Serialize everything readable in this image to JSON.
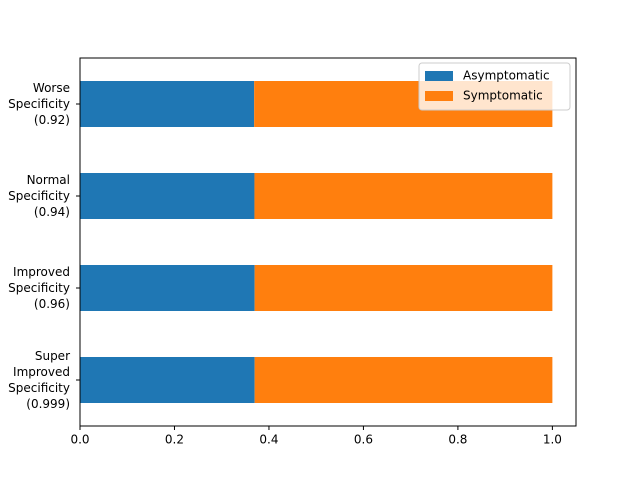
{
  "chart_data": {
    "type": "stacked-barh",
    "categories": [
      [
        "Worse",
        "Specificity",
        "(0.92)"
      ],
      [
        "Normal",
        "Specificity",
        "(0.94)"
      ],
      [
        "Improved",
        "Specificity",
        "(0.96)"
      ],
      [
        "Super",
        "Improved",
        "Specificity",
        "(0.999)"
      ]
    ],
    "series": [
      {
        "name": "Asymptomatic",
        "color": "#1f77b4",
        "values": [
          0.3687,
          0.3693,
          0.3697,
          0.3697
        ],
        "value_labels": [
          "36.87%",
          "36.93%",
          "36.97%",
          "36.97%"
        ]
      },
      {
        "name": "Symptomatic",
        "color": "#ff7f0e",
        "values": [
          0.6313,
          0.6307,
          0.6303,
          0.6303
        ]
      }
    ],
    "xlim": [
      0,
      1.05
    ],
    "xticks": [
      {
        "value": 0,
        "label": "0.0"
      },
      {
        "value": 0.2,
        "label": "0.2"
      },
      {
        "value": 0.4,
        "label": "0.4"
      },
      {
        "value": 0.6,
        "label": "0.6"
      },
      {
        "value": 0.8,
        "label": "0.8"
      },
      {
        "value": 1,
        "label": "1.0"
      }
    ],
    "grid": false,
    "legend": "upper right"
  }
}
